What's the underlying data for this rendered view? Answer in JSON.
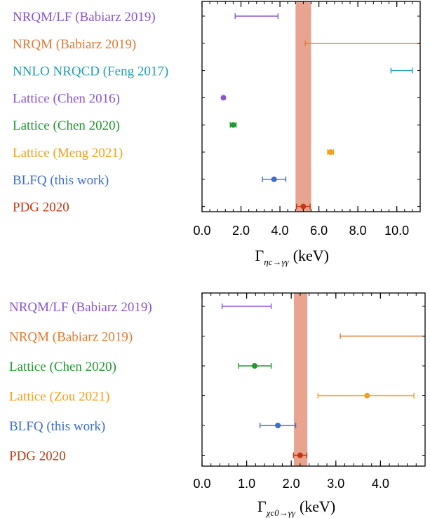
{
  "chart_data": [
    {
      "type": "scatter",
      "title": "",
      "xlabel": {
        "main": "Γ",
        "sub": "ηc→γγ",
        "unit": "(keV)"
      },
      "xlim": [
        0,
        11.2
      ],
      "xticks": [
        "0.0",
        "2.0",
        "4.0",
        "6.0",
        "8.0",
        "10.0"
      ],
      "xtick_values": [
        0,
        2,
        4,
        6,
        8,
        10
      ],
      "grid": false,
      "band": {
        "label": "PDG 2020",
        "lo": 4.8,
        "hi": 5.6,
        "color": "#e9a48f"
      },
      "entries": [
        {
          "label": "NRQM/LF (Babiarz 2019)",
          "color": "#8a55d0",
          "lo": 1.7,
          "hi": 3.9,
          "value": null
        },
        {
          "label": "NRQM (Babiarz 2019)",
          "color": "#e07a32",
          "lo": 5.3,
          "hi": 11.2,
          "value": null
        },
        {
          "label": "NNLO NRQCD (Feng 2017)",
          "color": "#1f9db3",
          "lo": 9.7,
          "hi": 10.8,
          "value": null
        },
        {
          "label": "Lattice (Chen 2016)",
          "color": "#8a55d0",
          "lo": null,
          "hi": null,
          "value": 1.1
        },
        {
          "label": "Lattice (Chen 2020)",
          "color": "#1e9a2e",
          "lo": 1.45,
          "hi": 1.75,
          "value": 1.6
        },
        {
          "label": "Lattice (Meng 2021)",
          "color": "#f5a01a",
          "lo": 6.45,
          "hi": 6.75,
          "value": 6.6
        },
        {
          "label": "BLFQ (this work)",
          "color": "#3a6fd0",
          "lo": 3.1,
          "hi": 4.3,
          "value": 3.7
        },
        {
          "label": "PDG 2020",
          "color": "#c4380f",
          "lo": 4.85,
          "hi": 5.55,
          "value": 5.2
        }
      ]
    },
    {
      "type": "scatter",
      "title": "",
      "xlabel": {
        "main": "Γ",
        "sub": "χc0→γγ",
        "unit": "(keV)"
      },
      "xlim": [
        0,
        5.0
      ],
      "xticks": [
        "0.0",
        "1.0",
        "2.0",
        "3.0",
        "4.0"
      ],
      "xtick_values": [
        0,
        1,
        2,
        3,
        4
      ],
      "grid": false,
      "band": {
        "label": "PDG 2020",
        "lo": 2.06,
        "hi": 2.36,
        "color": "#e9a48f"
      },
      "entries": [
        {
          "label": "NRQM/LF (Babiarz 2019)",
          "color": "#8a55d0",
          "lo": 0.45,
          "hi": 1.55,
          "value": null
        },
        {
          "label": "NRQM (Babiarz 2019)",
          "color": "#e07a32",
          "lo": 3.1,
          "hi": 5.0,
          "value": null
        },
        {
          "label": "Lattice (Chen 2020)",
          "color": "#1e9a2e",
          "lo": 0.82,
          "hi": 1.55,
          "value": 1.18
        },
        {
          "label": "Lattice (Zou 2021)",
          "color": "#f5a01a",
          "lo": 2.6,
          "hi": 4.75,
          "value": 3.7
        },
        {
          "label": "BLFQ (this work)",
          "color": "#3a6fd0",
          "lo": 1.3,
          "hi": 2.1,
          "value": 1.7
        },
        {
          "label": "PDG 2020",
          "color": "#c4380f",
          "lo": 2.05,
          "hi": 2.35,
          "value": 2.2
        }
      ]
    }
  ]
}
